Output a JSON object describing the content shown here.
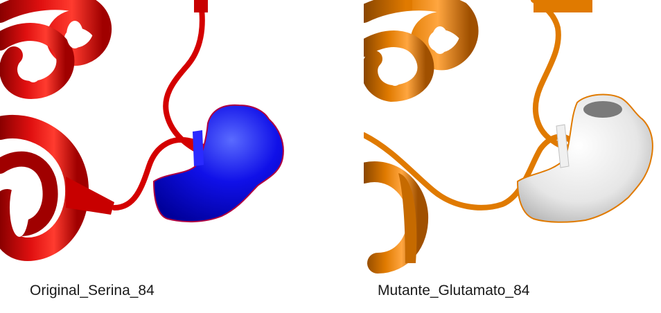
{
  "panels": {
    "original": {
      "caption": "Original_Serina_84",
      "ribbon_color": "#d40000",
      "ribbon_dark": "#7a0000",
      "ribbon_light": "#ff4a3a",
      "surface_color": "#1010e8",
      "surface_highlight": "#5a6bff",
      "surface_dark": "#00009a"
    },
    "mutant": {
      "caption": "Mutante_Glutamato_84",
      "ribbon_color": "#e07a00",
      "ribbon_dark": "#8a4600",
      "ribbon_light": "#ffa640",
      "surface_color": "#e6e6e6",
      "surface_highlight": "#ffffff",
      "surface_dark": "#9a9a9a"
    }
  }
}
